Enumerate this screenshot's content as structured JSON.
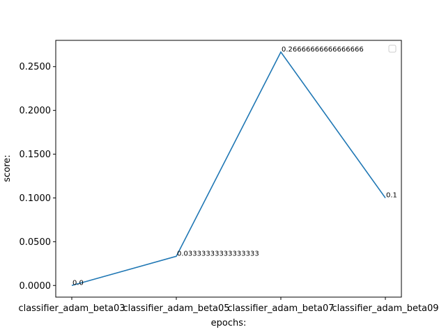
{
  "chart_data": {
    "type": "line",
    "categories": [
      "classifier_adam_beta03",
      "classifier_adam_beta05",
      "classifier_adam_beta07",
      "classifier_adam_beta09"
    ],
    "series": [
      {
        "values": [
          0.0,
          0.03333333333333333,
          0.26666666666666666,
          0.1
        ],
        "color": "#1f77b4"
      }
    ],
    "data_labels": [
      "0.0",
      "0.03333333333333333",
      "0.26666666666666666",
      "0.1"
    ],
    "xlabel": "epochs:",
    "ylabel": "score:",
    "ylim": [
      -0.0133,
      0.28
    ],
    "yticks": [
      0.0,
      0.05,
      0.1,
      0.15,
      0.2,
      0.25
    ],
    "ytick_labels": [
      "0.0000",
      "0.0500",
      "0.1000",
      "0.1500",
      "0.2000",
      "0.2500"
    ],
    "grid": false,
    "legend": {
      "placement": "top-right",
      "entries": []
    }
  }
}
